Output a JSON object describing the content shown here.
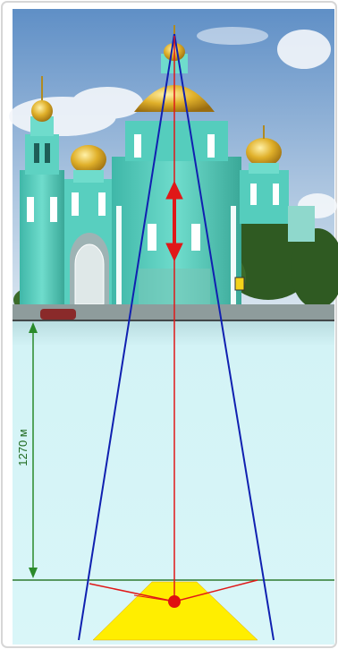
{
  "diagram": {
    "distance_label": "1270 м",
    "photo_subject": "cathedral-with-golden-domes",
    "colors": {
      "sky_top": "#5f8fc6",
      "sky_bottom": "#cfe0ee",
      "water": "#d3f3f6",
      "building": "#4cc9b8",
      "building_shadow": "#2f9e90",
      "dome_gold": "#d9a720",
      "sight_lines": "#1020b0",
      "height_arrow": "#e01818",
      "distance_arrow": "#2a8a2a",
      "horizon_line": "#222222",
      "ground_line": "#2f7a2f",
      "field_of_view": "#ffee00",
      "observer": "#e01010"
    }
  }
}
